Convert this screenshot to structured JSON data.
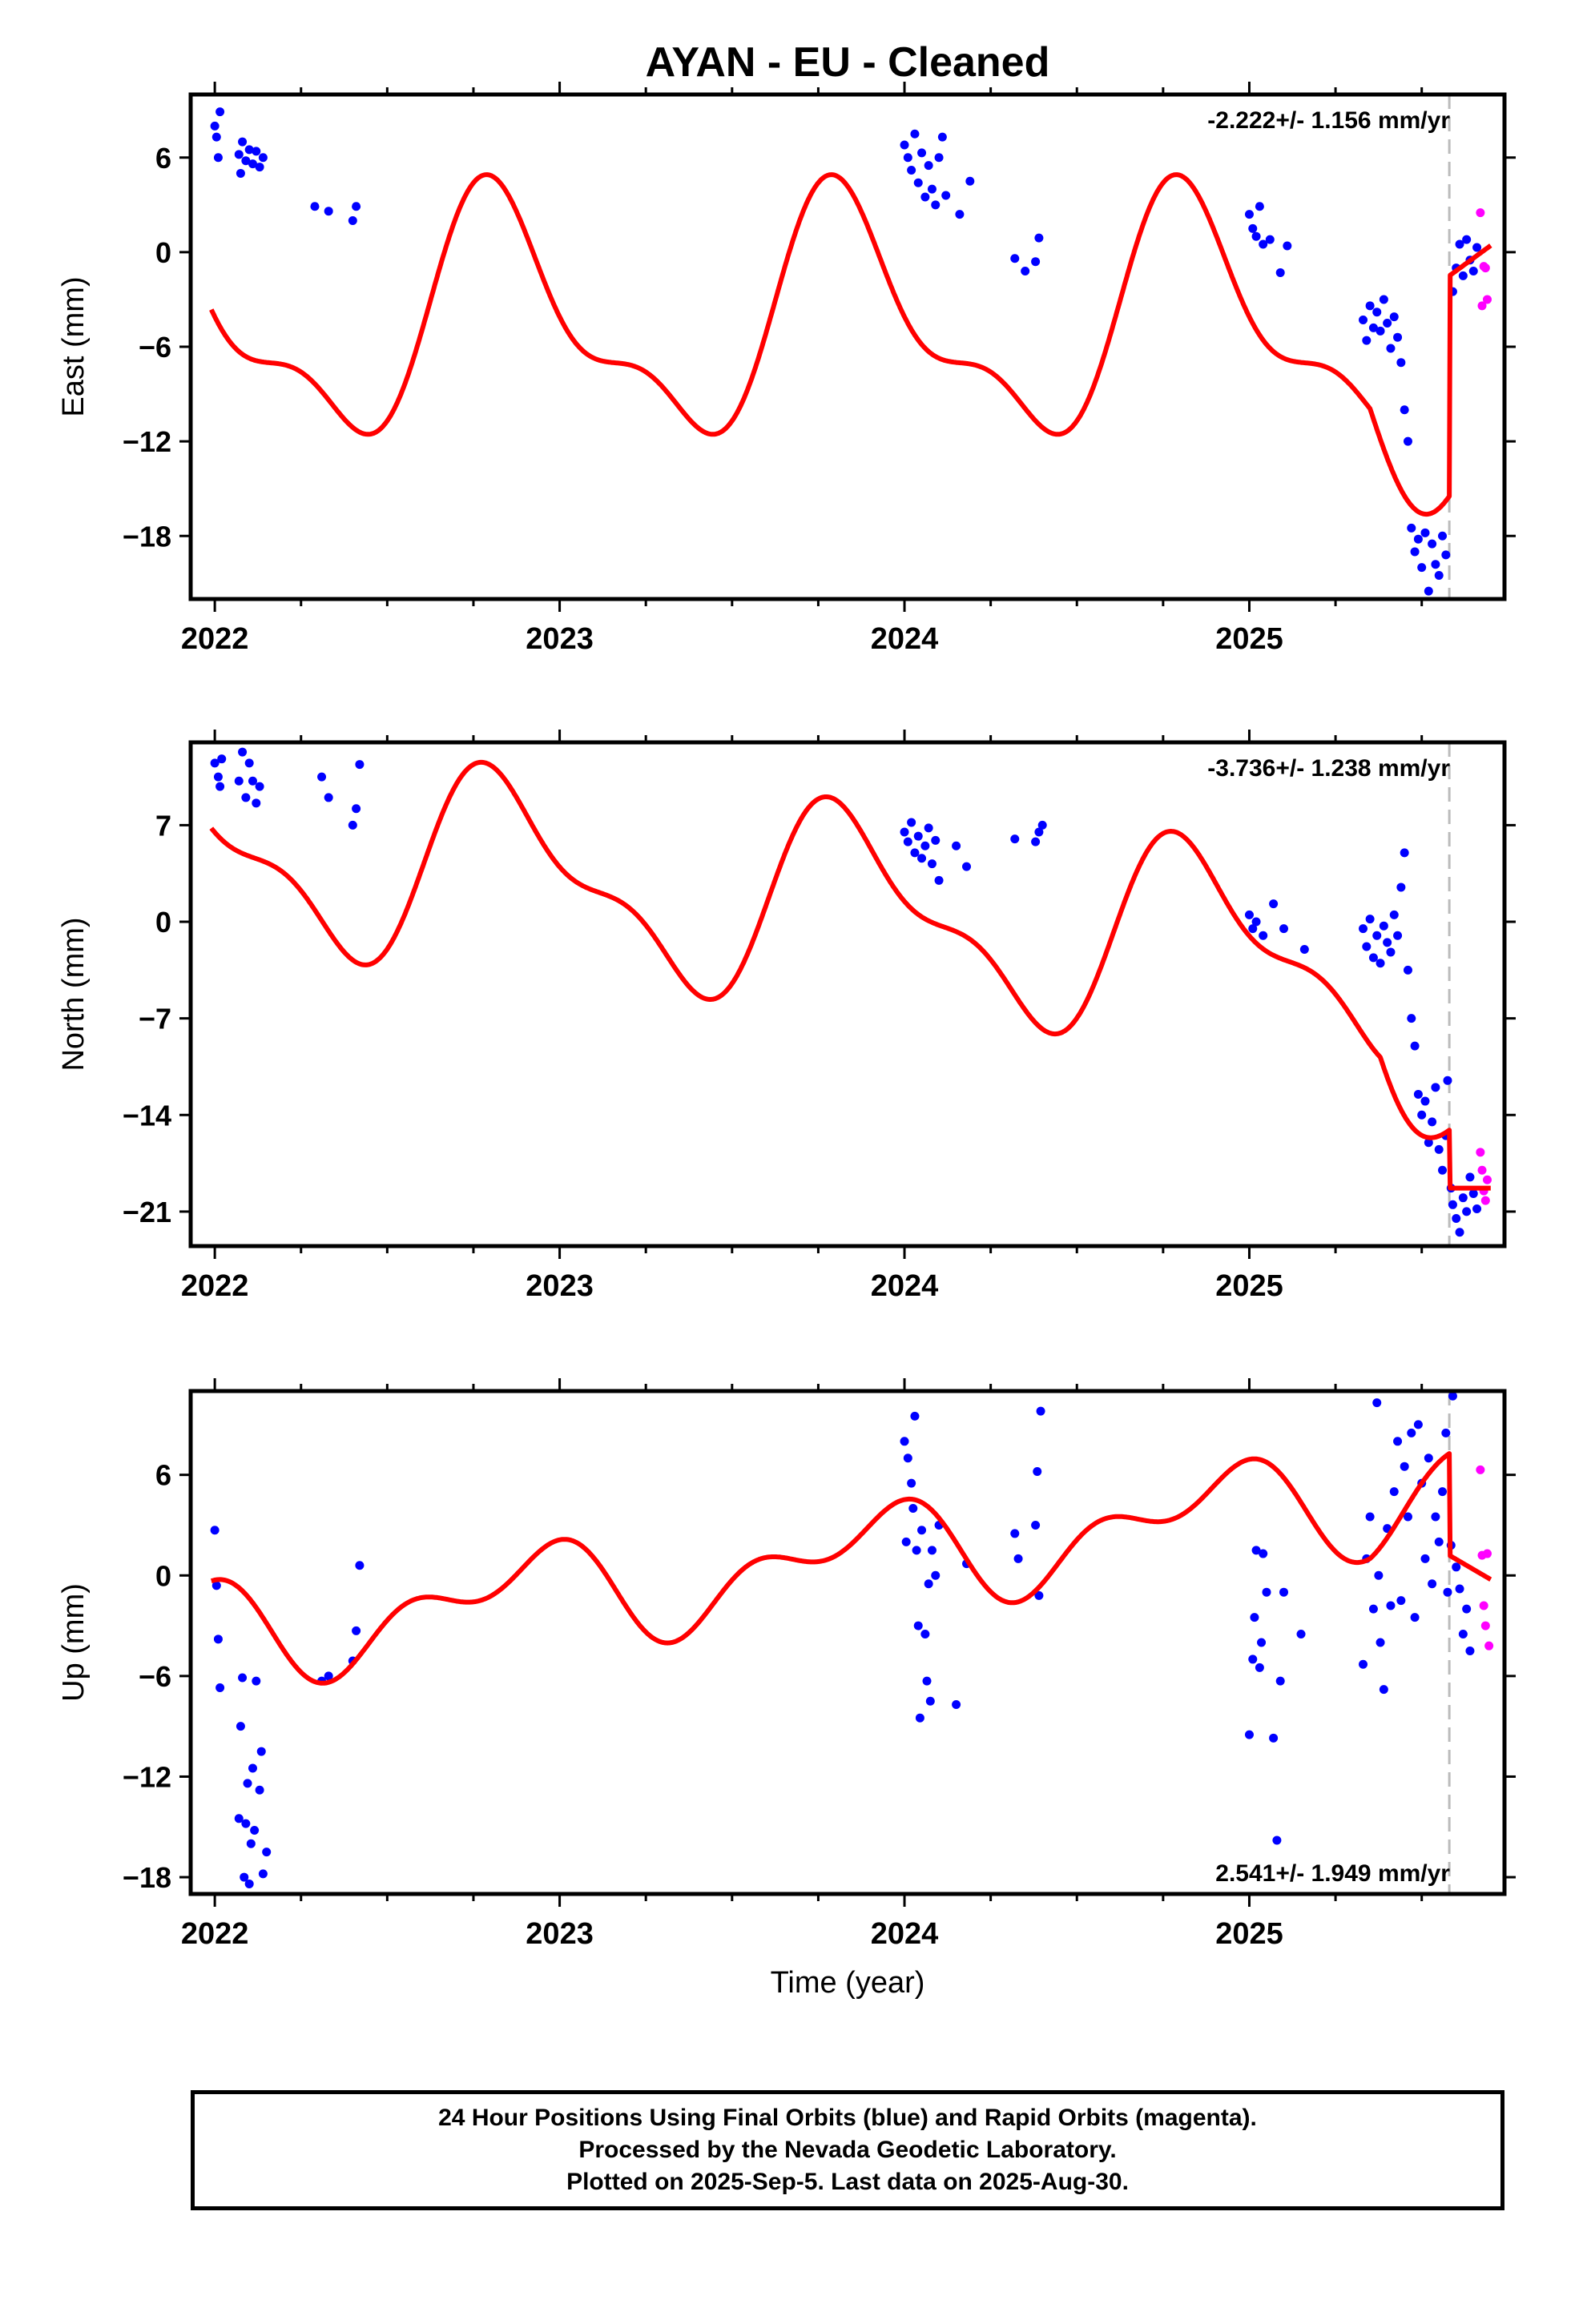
{
  "title": "AYAN  - EU - Cleaned",
  "xlabel": "Time (year)",
  "colors": {
    "final": "#0000ff",
    "rapid": "#ff00ff",
    "model": "#ff0000",
    "offset_line": "#bbbbbb"
  },
  "footer": {
    "line1": "24 Hour Positions Using Final Orbits (blue) and Rapid Orbits (magenta).",
    "line2": "Processed by the Nevada Geodetic Laboratory.",
    "line3": "Plotted on 2025-Sep-5. Last data on 2025-Aug-30."
  },
  "chart_data": [
    {
      "type": "scatter",
      "name": "east",
      "ylabel": "East (mm)",
      "velocity_text": "-2.222+/- 1.156 mm/yr",
      "velocity_position": "top-right",
      "xlim": [
        2021.93,
        2025.74
      ],
      "ylim": [
        -22,
        10
      ],
      "yticks": [
        -18,
        -12,
        -6,
        0,
        6
      ],
      "xticks": [
        2022,
        2023,
        2024,
        2025
      ],
      "offset_year": 2025.58,
      "model": {
        "segments": [
          {
            "t0": 2021.99,
            "t1": 2025.58,
            "mean": -4.5,
            "trend": 0,
            "annual": [
              -6.0,
              3.3
            ],
            "semiannual": [
              -0.5,
              -2.9
            ]
          },
          {
            "t0": 2025.58,
            "t1": 2025.7,
            "mean": -1.5,
            "trend": 16
          }
        ],
        "adjust": [
          {
            "t0": 2025.35,
            "t1": 2025.58,
            "delta": -9
          }
        ]
      },
      "final_points": [
        [
          2022.0,
          8.0
        ],
        [
          2022.005,
          7.3
        ],
        [
          2022.01,
          6.0
        ],
        [
          2022.015,
          8.9
        ],
        [
          2022.07,
          6.2
        ],
        [
          2022.075,
          5.0
        ],
        [
          2022.08,
          7.0
        ],
        [
          2022.09,
          5.8
        ],
        [
          2022.1,
          6.5
        ],
        [
          2022.11,
          5.6
        ],
        [
          2022.12,
          6.4
        ],
        [
          2022.13,
          5.4
        ],
        [
          2022.14,
          6.0
        ],
        [
          2022.29,
          2.9
        ],
        [
          2022.33,
          2.6
        ],
        [
          2022.4,
          2.0
        ],
        [
          2022.41,
          2.9
        ],
        [
          2024.0,
          6.8
        ],
        [
          2024.01,
          6.0
        ],
        [
          2024.02,
          5.2
        ],
        [
          2024.03,
          7.5
        ],
        [
          2024.04,
          4.4
        ],
        [
          2024.05,
          6.3
        ],
        [
          2024.06,
          3.5
        ],
        [
          2024.07,
          5.5
        ],
        [
          2024.08,
          4.0
        ],
        [
          2024.09,
          3.0
        ],
        [
          2024.1,
          6.0
        ],
        [
          2024.11,
          7.3
        ],
        [
          2024.12,
          3.6
        ],
        [
          2024.16,
          2.4
        ],
        [
          2024.19,
          4.5
        ],
        [
          2024.32,
          -0.4
        ],
        [
          2024.35,
          -1.2
        ],
        [
          2024.38,
          -0.6
        ],
        [
          2024.39,
          0.9
        ],
        [
          2025.0,
          2.4
        ],
        [
          2025.01,
          1.5
        ],
        [
          2025.02,
          1.0
        ],
        [
          2025.03,
          2.9
        ],
        [
          2025.04,
          0.5
        ],
        [
          2025.06,
          0.8
        ],
        [
          2025.09,
          -1.3
        ],
        [
          2025.11,
          0.4
        ],
        [
          2025.33,
          -4.3
        ],
        [
          2025.34,
          -5.6
        ],
        [
          2025.35,
          -3.4
        ],
        [
          2025.36,
          -4.8
        ],
        [
          2025.37,
          -3.8
        ],
        [
          2025.38,
          -5.0
        ],
        [
          2025.39,
          -3.0
        ],
        [
          2025.4,
          -4.5
        ],
        [
          2025.41,
          -6.1
        ],
        [
          2025.42,
          -4.1
        ],
        [
          2025.43,
          -5.4
        ],
        [
          2025.44,
          -7.0
        ],
        [
          2025.45,
          -10.0
        ],
        [
          2025.46,
          -12.0
        ],
        [
          2025.47,
          -17.5
        ],
        [
          2025.48,
          -19.0
        ],
        [
          2025.49,
          -18.2
        ],
        [
          2025.5,
          -20.0
        ],
        [
          2025.51,
          -17.8
        ],
        [
          2025.52,
          -21.5
        ],
        [
          2025.53,
          -18.5
        ],
        [
          2025.54,
          -19.8
        ],
        [
          2025.55,
          -20.5
        ],
        [
          2025.56,
          -18.0
        ],
        [
          2025.57,
          -19.2
        ],
        [
          2025.59,
          -2.5
        ],
        [
          2025.6,
          -1.0
        ],
        [
          2025.61,
          0.5
        ],
        [
          2025.62,
          -1.5
        ],
        [
          2025.63,
          0.8
        ],
        [
          2025.64,
          -0.5
        ],
        [
          2025.65,
          -1.2
        ],
        [
          2025.66,
          0.3
        ]
      ],
      "rapid_points": [
        [
          2025.67,
          2.5
        ],
        [
          2025.68,
          -0.9
        ],
        [
          2025.69,
          -3.0
        ],
        [
          2025.675,
          -3.4
        ],
        [
          2025.685,
          -1.0
        ]
      ]
    },
    {
      "type": "scatter",
      "name": "north",
      "ylabel": "North (mm)",
      "velocity_text": "-3.736+/- 1.238 mm/yr",
      "velocity_position": "top-right",
      "xlim": [
        2021.93,
        2025.74
      ],
      "ylim": [
        -23.5,
        13
      ],
      "yticks": [
        -21,
        -14,
        -7,
        0,
        7
      ],
      "xticks": [
        2022,
        2023,
        2024,
        2025
      ],
      "offset_year": 2025.58,
      "model": {
        "segments": [
          {
            "t0": 2021.99,
            "t1": 2025.58,
            "mean": 5.5,
            "trend": -2.5,
            "annual": [
              -5.2,
              3.6
            ],
            "semiannual": [
              0.5,
              -2.6
            ]
          },
          {
            "t0": 2025.58,
            "t1": 2025.7,
            "mean": -19.3,
            "trend": 0
          }
        ],
        "adjust": [
          {
            "t0": 2025.38,
            "t1": 2025.58,
            "delta": -10
          }
        ]
      },
      "final_points": [
        [
          2022.0,
          11.5
        ],
        [
          2022.01,
          10.5
        ],
        [
          2022.015,
          9.8
        ],
        [
          2022.02,
          11.8
        ],
        [
          2022.07,
          10.2
        ],
        [
          2022.08,
          12.3
        ],
        [
          2022.09,
          9.0
        ],
        [
          2022.1,
          11.5
        ],
        [
          2022.11,
          10.2
        ],
        [
          2022.12,
          8.6
        ],
        [
          2022.13,
          9.8
        ],
        [
          2022.31,
          10.5
        ],
        [
          2022.33,
          9.0
        ],
        [
          2022.4,
          7.0
        ],
        [
          2022.41,
          8.2
        ],
        [
          2022.42,
          11.4
        ],
        [
          2024.0,
          6.5
        ],
        [
          2024.01,
          5.8
        ],
        [
          2024.02,
          7.2
        ],
        [
          2024.03,
          5.0
        ],
        [
          2024.04,
          6.2
        ],
        [
          2024.05,
          4.6
        ],
        [
          2024.06,
          5.5
        ],
        [
          2024.07,
          6.8
        ],
        [
          2024.08,
          4.2
        ],
        [
          2024.09,
          5.9
        ],
        [
          2024.1,
          3.0
        ],
        [
          2024.15,
          5.5
        ],
        [
          2024.18,
          4.0
        ],
        [
          2024.32,
          6.0
        ],
        [
          2024.38,
          5.8
        ],
        [
          2024.39,
          6.5
        ],
        [
          2024.4,
          7.0
        ],
        [
          2025.0,
          0.5
        ],
        [
          2025.01,
          -0.5
        ],
        [
          2025.02,
          0.0
        ],
        [
          2025.04,
          -1.0
        ],
        [
          2025.07,
          1.3
        ],
        [
          2025.1,
          -0.5
        ],
        [
          2025.16,
          -2.0
        ],
        [
          2025.33,
          -0.5
        ],
        [
          2025.34,
          -1.8
        ],
        [
          2025.35,
          0.2
        ],
        [
          2025.36,
          -2.6
        ],
        [
          2025.37,
          -1.0
        ],
        [
          2025.38,
          -3.0
        ],
        [
          2025.39,
          -0.3
        ],
        [
          2025.4,
          -1.5
        ],
        [
          2025.41,
          -2.2
        ],
        [
          2025.42,
          0.5
        ],
        [
          2025.43,
          -1.0
        ],
        [
          2025.44,
          2.5
        ],
        [
          2025.45,
          5.0
        ],
        [
          2025.46,
          -3.5
        ],
        [
          2025.47,
          -7.0
        ],
        [
          2025.48,
          -9.0
        ],
        [
          2025.49,
          -12.5
        ],
        [
          2025.5,
          -14.0
        ],
        [
          2025.51,
          -13.0
        ],
        [
          2025.52,
          -16.0
        ],
        [
          2025.53,
          -14.5
        ],
        [
          2025.54,
          -12.0
        ],
        [
          2025.55,
          -16.5
        ],
        [
          2025.56,
          -18.0
        ],
        [
          2025.57,
          -15.5
        ],
        [
          2025.575,
          -11.5
        ],
        [
          2025.585,
          -19.3
        ],
        [
          2025.59,
          -20.5
        ],
        [
          2025.6,
          -21.5
        ],
        [
          2025.61,
          -22.5
        ],
        [
          2025.62,
          -20.0
        ],
        [
          2025.63,
          -21.0
        ],
        [
          2025.64,
          -18.5
        ],
        [
          2025.65,
          -19.7
        ],
        [
          2025.66,
          -20.8
        ]
      ],
      "rapid_points": [
        [
          2025.67,
          -16.7
        ],
        [
          2025.675,
          -18.0
        ],
        [
          2025.68,
          -19.5
        ],
        [
          2025.685,
          -20.2
        ],
        [
          2025.69,
          -18.7
        ]
      ]
    },
    {
      "type": "scatter",
      "name": "up",
      "ylabel": "Up (mm)",
      "velocity_text": "2.541+/- 1.949 mm/yr",
      "velocity_position": "bottom-right",
      "xlim": [
        2021.93,
        2025.74
      ],
      "ylim": [
        -19,
        11
      ],
      "yticks": [
        -18,
        -12,
        -6,
        0,
        6
      ],
      "xticks": [
        2022,
        2023,
        2024,
        2025
      ],
      "offset_year": 2025.58,
      "model": {
        "segments": [
          {
            "t0": 2021.99,
            "t1": 2025.58,
            "mean": -3.5,
            "trend": 2.4,
            "annual": [
              -1.5,
              1.8
            ],
            "semiannual": [
              0.9,
              1.4
            ]
          },
          {
            "t0": 2025.58,
            "t1": 2025.7,
            "mean": 1.2,
            "trend": -12
          }
        ],
        "adjust": [
          {
            "t0": 2025.35,
            "t1": 2025.58,
            "delta": 1.5
          }
        ]
      },
      "final_points": [
        [
          2022.0,
          2.7
        ],
        [
          2022.005,
          -0.6
        ],
        [
          2022.01,
          -3.8
        ],
        [
          2022.015,
          -6.7
        ],
        [
          2022.07,
          -14.5
        ],
        [
          2022.075,
          -9.0
        ],
        [
          2022.08,
          -6.1
        ],
        [
          2022.085,
          -18.0
        ],
        [
          2022.09,
          -14.8
        ],
        [
          2022.095,
          -12.4
        ],
        [
          2022.1,
          -18.4
        ],
        [
          2022.105,
          -16.0
        ],
        [
          2022.11,
          -11.5
        ],
        [
          2022.115,
          -15.2
        ],
        [
          2022.12,
          -6.3
        ],
        [
          2022.13,
          -12.8
        ],
        [
          2022.135,
          -10.5
        ],
        [
          2022.14,
          -17.8
        ],
        [
          2022.15,
          -16.5
        ],
        [
          2022.31,
          -6.3
        ],
        [
          2022.33,
          -6.0
        ],
        [
          2022.4,
          -5.1
        ],
        [
          2022.41,
          -3.3
        ],
        [
          2022.42,
          0.6
        ],
        [
          2024.0,
          8.0
        ],
        [
          2024.005,
          2.0
        ],
        [
          2024.01,
          7.0
        ],
        [
          2024.02,
          5.5
        ],
        [
          2024.025,
          4.0
        ],
        [
          2024.03,
          9.5
        ],
        [
          2024.035,
          1.5
        ],
        [
          2024.04,
          -3.0
        ],
        [
          2024.045,
          -8.5
        ],
        [
          2024.05,
          2.7
        ],
        [
          2024.06,
          -3.5
        ],
        [
          2024.065,
          -6.3
        ],
        [
          2024.07,
          -0.5
        ],
        [
          2024.075,
          -7.5
        ],
        [
          2024.08,
          1.5
        ],
        [
          2024.09,
          0.0
        ],
        [
          2024.1,
          3.0
        ],
        [
          2024.15,
          -7.7
        ],
        [
          2024.18,
          0.7
        ],
        [
          2024.32,
          2.5
        ],
        [
          2024.33,
          1.0
        ],
        [
          2024.38,
          3.0
        ],
        [
          2024.385,
          6.2
        ],
        [
          2024.39,
          -1.2
        ],
        [
          2024.395,
          9.8
        ],
        [
          2025.0,
          -9.5
        ],
        [
          2025.01,
          -5.0
        ],
        [
          2025.015,
          -2.5
        ],
        [
          2025.02,
          1.5
        ],
        [
          2025.03,
          -5.5
        ],
        [
          2025.035,
          -4.0
        ],
        [
          2025.04,
          1.3
        ],
        [
          2025.05,
          -1.0
        ],
        [
          2025.07,
          -9.7
        ],
        [
          2025.08,
          -15.8
        ],
        [
          2025.09,
          -6.3
        ],
        [
          2025.1,
          -1.0
        ],
        [
          2025.15,
          -3.5
        ],
        [
          2025.33,
          -5.3
        ],
        [
          2025.34,
          1.0
        ],
        [
          2025.35,
          3.5
        ],
        [
          2025.36,
          -2.0
        ],
        [
          2025.37,
          10.3
        ],
        [
          2025.375,
          0.0
        ],
        [
          2025.38,
          -4.0
        ],
        [
          2025.39,
          -6.8
        ],
        [
          2025.4,
          2.8
        ],
        [
          2025.41,
          -1.8
        ],
        [
          2025.42,
          5.0
        ],
        [
          2025.43,
          8.0
        ],
        [
          2025.44,
          -1.5
        ],
        [
          2025.45,
          6.5
        ],
        [
          2025.46,
          3.5
        ],
        [
          2025.47,
          8.5
        ],
        [
          2025.48,
          -2.5
        ],
        [
          2025.49,
          9.0
        ],
        [
          2025.5,
          5.5
        ],
        [
          2025.51,
          1.0
        ],
        [
          2025.52,
          7.0
        ],
        [
          2025.53,
          -0.5
        ],
        [
          2025.54,
          3.5
        ],
        [
          2025.55,
          2.0
        ],
        [
          2025.56,
          5.0
        ],
        [
          2025.57,
          8.5
        ],
        [
          2025.575,
          -1.0
        ],
        [
          2025.585,
          1.8
        ],
        [
          2025.59,
          10.7
        ],
        [
          2025.6,
          0.5
        ],
        [
          2025.61,
          -0.8
        ],
        [
          2025.62,
          -3.5
        ],
        [
          2025.63,
          -2.0
        ],
        [
          2025.64,
          -4.5
        ]
      ],
      "rapid_points": [
        [
          2025.67,
          6.3
        ],
        [
          2025.675,
          1.2
        ],
        [
          2025.68,
          -1.8
        ],
        [
          2025.685,
          -3.0
        ],
        [
          2025.69,
          1.3
        ],
        [
          2025.695,
          -4.2
        ]
      ]
    }
  ]
}
